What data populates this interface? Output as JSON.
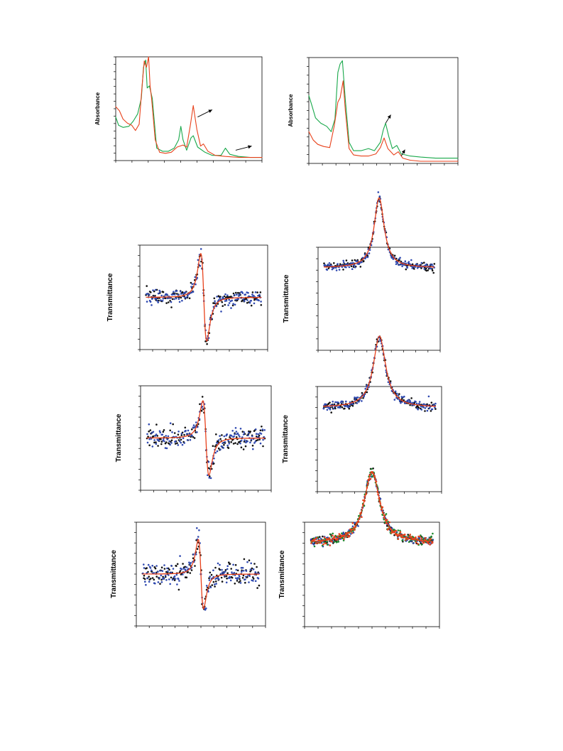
{
  "chart_data": [
    {
      "type": "line",
      "ylabel": "Absorbance",
      "xlim": [
        0,
        10
      ],
      "ylim": [
        0,
        1
      ],
      "series": [
        {
          "color": "#18a84a",
          "points": [
            [
              0,
              0.42
            ],
            [
              0.2,
              0.34
            ],
            [
              0.5,
              0.32
            ],
            [
              0.9,
              0.33
            ],
            [
              1.2,
              0.38
            ],
            [
              1.5,
              0.45
            ],
            [
              1.75,
              0.6
            ],
            [
              1.9,
              0.9
            ],
            [
              2.05,
              0.97
            ],
            [
              2.15,
              0.7
            ],
            [
              2.3,
              0.72
            ],
            [
              2.5,
              0.6
            ],
            [
              2.8,
              0.12
            ],
            [
              3.2,
              0.09
            ],
            [
              3.6,
              0.09
            ],
            [
              4.0,
              0.12
            ],
            [
              4.3,
              0.2
            ],
            [
              4.45,
              0.33
            ],
            [
              4.6,
              0.2
            ],
            [
              4.85,
              0.1
            ],
            [
              5.15,
              0.22
            ],
            [
              5.3,
              0.24
            ],
            [
              5.6,
              0.13
            ],
            [
              6.1,
              0.08
            ],
            [
              6.6,
              0.05
            ],
            [
              7.2,
              0.05
            ],
            [
              7.5,
              0.12
            ],
            [
              7.8,
              0.06
            ],
            [
              8.4,
              0.04
            ],
            [
              9.2,
              0.03
            ],
            [
              10,
              0.03
            ]
          ]
        },
        {
          "color": "#e8421c",
          "points": [
            [
              0,
              0.52
            ],
            [
              0.25,
              0.48
            ],
            [
              0.5,
              0.4
            ],
            [
              0.8,
              0.36
            ],
            [
              1.1,
              0.34
            ],
            [
              1.35,
              0.29
            ],
            [
              1.6,
              0.35
            ],
            [
              1.8,
              0.72
            ],
            [
              1.95,
              0.96
            ],
            [
              2.1,
              0.9
            ],
            [
              2.25,
              1.0
            ],
            [
              2.35,
              0.72
            ],
            [
              2.45,
              0.6
            ],
            [
              2.7,
              0.2
            ],
            [
              3.0,
              0.08
            ],
            [
              3.4,
              0.07
            ],
            [
              3.8,
              0.08
            ],
            [
              4.2,
              0.13
            ],
            [
              4.6,
              0.15
            ],
            [
              4.85,
              0.13
            ],
            [
              5.1,
              0.34
            ],
            [
              5.3,
              0.53
            ],
            [
              5.55,
              0.3
            ],
            [
              5.8,
              0.14
            ],
            [
              6.0,
              0.16
            ],
            [
              6.3,
              0.09
            ],
            [
              6.8,
              0.05
            ],
            [
              7.5,
              0.04
            ],
            [
              8.5,
              0.03
            ],
            [
              10,
              0.03
            ]
          ]
        }
      ],
      "annotations": [
        {
          "type": "arrow",
          "from": [
            5.6,
            0.42
          ],
          "to": [
            6.6,
            0.49
          ]
        },
        {
          "type": "arrow",
          "from": [
            8.2,
            0.1
          ],
          "to": [
            9.3,
            0.14
          ]
        }
      ]
    },
    {
      "type": "line",
      "ylabel": "Absorbance",
      "xlim": [
        0,
        10
      ],
      "ylim": [
        0,
        1
      ],
      "series": [
        {
          "color": "#18a84a",
          "points": [
            [
              0,
              0.64
            ],
            [
              0.2,
              0.55
            ],
            [
              0.45,
              0.43
            ],
            [
              0.8,
              0.38
            ],
            [
              1.2,
              0.35
            ],
            [
              1.5,
              0.3
            ],
            [
              1.75,
              0.42
            ],
            [
              1.95,
              0.86
            ],
            [
              2.1,
              0.94
            ],
            [
              2.25,
              0.97
            ],
            [
              2.45,
              0.6
            ],
            [
              2.7,
              0.2
            ],
            [
              3.0,
              0.12
            ],
            [
              3.5,
              0.12
            ],
            [
              4.0,
              0.14
            ],
            [
              4.4,
              0.12
            ],
            [
              4.8,
              0.2
            ],
            [
              5.0,
              0.32
            ],
            [
              5.15,
              0.38
            ],
            [
              5.35,
              0.26
            ],
            [
              5.6,
              0.14
            ],
            [
              5.9,
              0.17
            ],
            [
              6.2,
              0.09
            ],
            [
              6.8,
              0.07
            ],
            [
              7.5,
              0.06
            ],
            [
              8.5,
              0.05
            ],
            [
              10,
              0.05
            ]
          ]
        },
        {
          "color": "#e8421c",
          "points": [
            [
              0,
              0.3
            ],
            [
              0.3,
              0.22
            ],
            [
              0.6,
              0.18
            ],
            [
              1.0,
              0.16
            ],
            [
              1.4,
              0.15
            ],
            [
              1.7,
              0.35
            ],
            [
              1.95,
              0.58
            ],
            [
              2.1,
              0.62
            ],
            [
              2.3,
              0.78
            ],
            [
              2.45,
              0.5
            ],
            [
              2.7,
              0.14
            ],
            [
              3.0,
              0.08
            ],
            [
              3.5,
              0.07
            ],
            [
              4.0,
              0.07
            ],
            [
              4.5,
              0.09
            ],
            [
              4.8,
              0.15
            ],
            [
              5.05,
              0.24
            ],
            [
              5.3,
              0.14
            ],
            [
              5.7,
              0.08
            ],
            [
              6.0,
              0.11
            ],
            [
              6.3,
              0.05
            ],
            [
              6.8,
              0.03
            ],
            [
              7.5,
              0.02
            ],
            [
              8.5,
              0.02
            ],
            [
              10,
              0.02
            ]
          ]
        }
      ],
      "annotations": [
        {
          "type": "arrow",
          "from": [
            5.15,
            0.38
          ],
          "to": [
            5.5,
            0.46
          ]
        },
        {
          "type": "arrow",
          "from": [
            6.2,
            0.07
          ],
          "to": [
            6.45,
            0.13
          ]
        }
      ]
    },
    {
      "type": "scatter",
      "ylabel": "Transmittance",
      "xlim": [
        -1,
        1
      ],
      "ylim": [
        -1,
        1
      ],
      "shape": "dispersive",
      "center": 0,
      "width": 0.08,
      "amplitude": 1.0,
      "fit": {
        "color": "#e8421c"
      },
      "series": [
        {
          "color": "#111111",
          "noise": 0.09
        },
        {
          "color": "#2f49b0",
          "noise": 0.09
        }
      ]
    },
    {
      "type": "scatter",
      "ylabel": "Transmittance",
      "xlim": [
        -1,
        1
      ],
      "ylim": [
        -1,
        1
      ],
      "shape": "absorptive",
      "center": 0,
      "width": 0.1,
      "amplitude": 1.0,
      "fit": {
        "color": "#e8421c"
      },
      "series": [
        {
          "color": "#111111",
          "noise": 0.03
        },
        {
          "color": "#2f49b0",
          "noise": 0.03
        }
      ]
    },
    {
      "type": "scatter",
      "ylabel": "Transmittance",
      "xlim": [
        -1,
        1
      ],
      "ylim": [
        -1,
        1
      ],
      "shape": "dispersive",
      "center": 0,
      "width": 0.08,
      "amplitude": 0.85,
      "fit": {
        "color": "#e8421c"
      },
      "series": [
        {
          "color": "#111111",
          "noise": 0.12
        },
        {
          "color": "#2f49b0",
          "noise": 0.12
        }
      ]
    },
    {
      "type": "scatter",
      "ylabel": "Transmittance",
      "xlim": [
        -1,
        1
      ],
      "ylim": [
        -1,
        1
      ],
      "shape": "absorptive",
      "center": 0,
      "width": 0.12,
      "amplitude": 1.0,
      "fit": {
        "color": "#e8421c"
      },
      "series": [
        {
          "color": "#111111",
          "noise": 0.03
        },
        {
          "color": "#2f49b0",
          "noise": 0.03
        }
      ]
    },
    {
      "type": "scatter",
      "ylabel": "Transmittance",
      "xlim": [
        -1,
        1
      ],
      "ylim": [
        -1,
        1
      ],
      "shape": "dispersive",
      "center": 0,
      "width": 0.07,
      "amplitude": 0.8,
      "fit": {
        "color": "#e8421c"
      },
      "series": [
        {
          "color": "#111111",
          "noise": 0.12
        },
        {
          "color": "#2f49b0",
          "noise": 0.12
        }
      ]
    },
    {
      "type": "scatter",
      "ylabel": "Transmittance",
      "xlim": [
        -1,
        1
      ],
      "ylim": [
        -1,
        1
      ],
      "shape": "absorptive",
      "center": 0,
      "width": 0.14,
      "amplitude": 1.0,
      "fit": {
        "color": "#e8421c"
      },
      "series": [
        {
          "color": "#111111",
          "noise": 0.03
        },
        {
          "color": "#2f49b0",
          "noise": 0.03
        },
        {
          "color": "#1e8a2e",
          "noise": 0.04
        },
        {
          "color": "#e8421c",
          "noise": 0.03
        }
      ]
    }
  ]
}
